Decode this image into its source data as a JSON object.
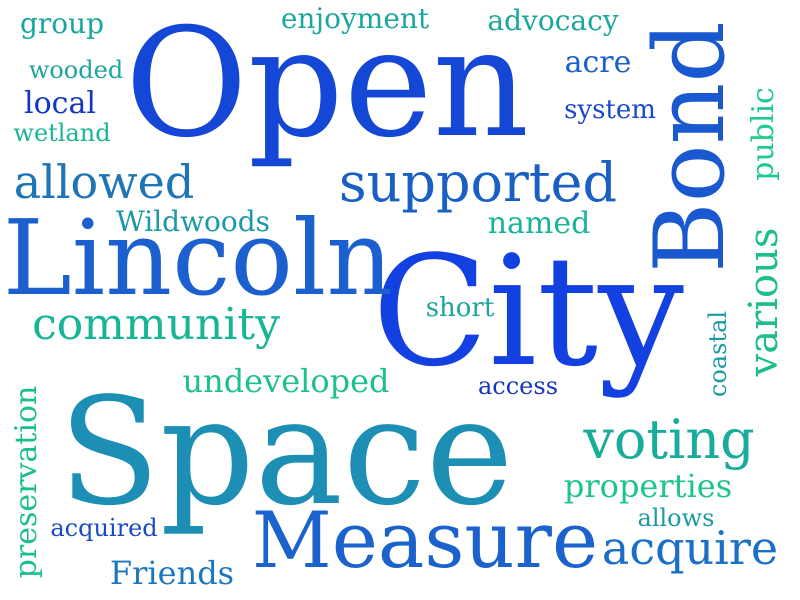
{
  "words": [
    {
      "id": "open",
      "text": "Open",
      "color": "#1547d6"
    },
    {
      "id": "space",
      "text": "Space",
      "color": "#1d8fb5"
    },
    {
      "id": "city",
      "text": "City",
      "color": "#1340e0"
    },
    {
      "id": "lincoln",
      "text": "Lincoln",
      "color": "#1c5fcf"
    },
    {
      "id": "bond",
      "text": "Bond",
      "color": "#1a58d0"
    },
    {
      "id": "measure",
      "text": "Measure",
      "color": "#1c62cc"
    },
    {
      "id": "supported",
      "text": "supported",
      "color": "#1a5fc4"
    },
    {
      "id": "community",
      "text": "community",
      "color": "#17b596"
    },
    {
      "id": "voting",
      "text": "voting",
      "color": "#18ad9a"
    },
    {
      "id": "acquire",
      "text": "acquire",
      "color": "#1b6fc6"
    },
    {
      "id": "allowed",
      "text": "allowed",
      "color": "#1d75b7"
    },
    {
      "id": "various",
      "text": "various",
      "color": "#1dbd8e"
    },
    {
      "id": "undeveloped",
      "text": "undeveloped",
      "color": "#1fc08f"
    },
    {
      "id": "properties",
      "text": "properties",
      "color": "#1ec48f"
    },
    {
      "id": "preservation",
      "text": "preservation",
      "color": "#1bbf8f"
    },
    {
      "id": "enjoyment",
      "text": "enjoyment",
      "color": "#1aa79d"
    },
    {
      "id": "advocacy",
      "text": "advocacy",
      "color": "#1aa79d"
    },
    {
      "id": "friends",
      "text": "Friends",
      "color": "#1b78c0"
    },
    {
      "id": "wildwoods",
      "text": "Wildwoods",
      "color": "#1a9aa4"
    },
    {
      "id": "public",
      "text": "public",
      "color": "#1fcb8a"
    },
    {
      "id": "named",
      "text": "named",
      "color": "#19b598"
    },
    {
      "id": "acre",
      "text": "acre",
      "color": "#1b5ed0"
    },
    {
      "id": "group",
      "text": "group",
      "color": "#19a79c"
    },
    {
      "id": "wooded",
      "text": "wooded",
      "color": "#1ca59c"
    },
    {
      "id": "local",
      "text": "local",
      "color": "#1138c0"
    },
    {
      "id": "wetland",
      "text": "wetland",
      "color": "#1ab496"
    },
    {
      "id": "system",
      "text": "system",
      "color": "#1a48c8"
    },
    {
      "id": "short",
      "text": "short",
      "color": "#1aa69d"
    },
    {
      "id": "access",
      "text": "access",
      "color": "#1837b8"
    },
    {
      "id": "coastal",
      "text": "coastal",
      "color": "#1a9aa2"
    },
    {
      "id": "acquired",
      "text": "acquired",
      "color": "#1a4bc4"
    },
    {
      "id": "allows",
      "text": "allows",
      "color": "#1a9aa2"
    }
  ]
}
